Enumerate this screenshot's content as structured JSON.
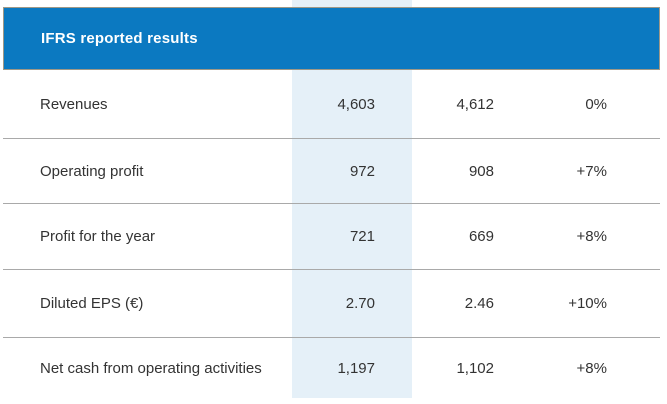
{
  "chart_data": {
    "type": "table",
    "title": "IFRS reported results",
    "columns": [
      "metric",
      "current_period",
      "prior_period",
      "change"
    ],
    "rows": [
      {
        "label": "Revenues",
        "current": "4,603",
        "prior": "4,612",
        "change": "0%"
      },
      {
        "label": "Operating profit",
        "current": "972",
        "prior": "908",
        "change": "+7%"
      },
      {
        "label": "Profit for the year",
        "current": "721",
        "prior": "669",
        "change": "+8%"
      },
      {
        "label": "Diluted EPS (€)",
        "current": "2.70",
        "prior": "2.46",
        "change": "+10%"
      },
      {
        "label": "Net cash from operating activities",
        "current": "1,197",
        "prior": "1,102",
        "change": "+8%"
      }
    ],
    "layout": {
      "highlighted_column": "current_period",
      "grid": "horizontal separators only",
      "header_style": "solid blue bar, white bold title"
    }
  },
  "colors": {
    "header_bg": "#0B79C1",
    "header_border": "#9E9887",
    "highlight_bg": "#E5F0F8",
    "separator": "#A9A9A9",
    "text": "#333333"
  }
}
